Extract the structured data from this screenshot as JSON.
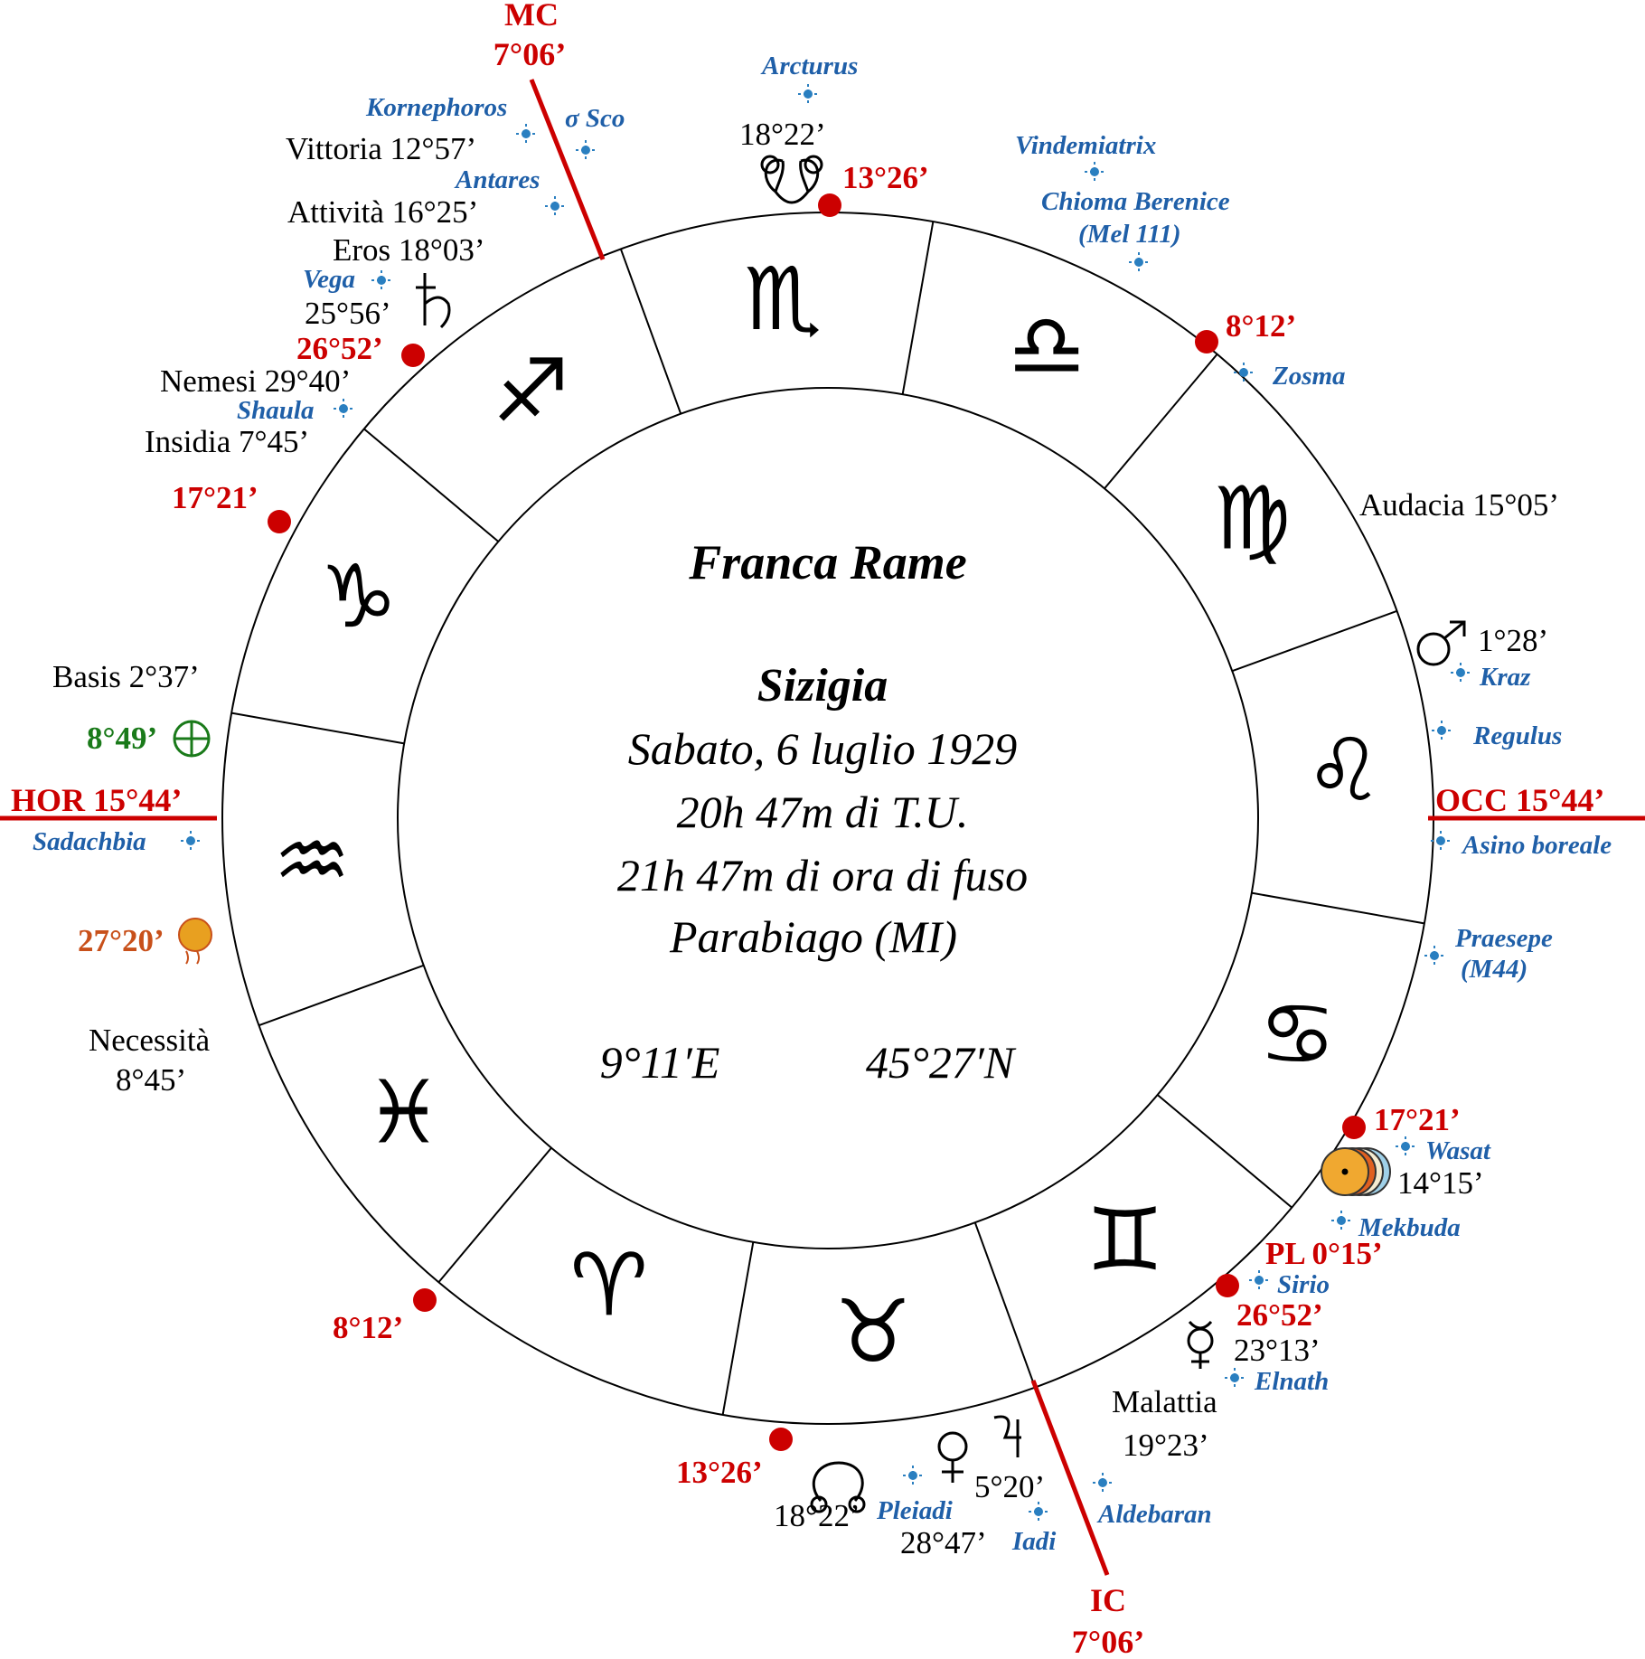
{
  "center": {
    "name": "Franca Rame",
    "event": "Sizigia",
    "date": "Sabato, 6 luglio 1929",
    "ut": "20h 47m di T.U.",
    "local": "21h 47m di ora di fuso",
    "place": "Parabiago (MI)",
    "lon": "9°11′E",
    "lat": "45°27′N"
  },
  "signs": [
    {
      "glyph": "♏",
      "name": "Scorpione"
    },
    {
      "glyph": "♎",
      "name": "Bilancia"
    },
    {
      "glyph": "♍",
      "name": "Vergine"
    },
    {
      "glyph": "♌",
      "name": "Leone"
    },
    {
      "glyph": "♋",
      "name": "Cancro"
    },
    {
      "glyph": "♊",
      "name": "Gemelli"
    },
    {
      "glyph": "♉",
      "name": "Toro"
    },
    {
      "glyph": "♈",
      "name": "Ariete"
    },
    {
      "glyph": "♓",
      "name": "Pesci"
    },
    {
      "glyph": "♒",
      "name": "Acquario"
    },
    {
      "glyph": "♑",
      "name": "Capricorno"
    },
    {
      "glyph": "♐",
      "name": "Sagittario"
    }
  ],
  "axes": {
    "mc_label": "MC",
    "mc_value": "7°06’",
    "ic_label": "IC",
    "ic_value": "7°06’",
    "asc": "HOR 15°44’",
    "desc": "OCC 15°44’"
  },
  "cusps": {
    "c1": "13°26’",
    "c2": "8°12’",
    "c3": "26°52’",
    "c4": "17°21’",
    "c5": "17°21’",
    "c6": "8°12’",
    "c7": "13°26’",
    "pl_label": "PL 0°15’",
    "c8": "26°52’"
  },
  "stars": {
    "arcturus": "Arcturus",
    "vindemiatrix": "Vindemiatrix",
    "chioma": "Chioma Berenice",
    "mel": "(Mel 111)",
    "zosma": "Zosma",
    "kornephoros": "Kornephoros",
    "sigma_sco": "σ Sco",
    "antares": "Antares",
    "vega": "Vega",
    "shaula": "Shaula",
    "kraz": "Kraz",
    "regulus": "Regulus",
    "asino": "Asino boreale",
    "praesepe": "Praesepe",
    "m44": "(M44)",
    "wasat": "Wasat",
    "mekbuda": "Mekbuda",
    "sirio": "Sirio",
    "elnath": "Elnath",
    "aldebaran": "Aldebaran",
    "pleiadi": "Pleiadi",
    "iadi": "Iadi",
    "sadachbia": "Sadachbia"
  },
  "points": {
    "vittoria": "Vittoria 12°57’",
    "attivita": "Attività 16°25’",
    "eros": "Eros 18°03’",
    "saturn": "25°56’",
    "nemesi": "Nemesi 29°40’",
    "insidia": "Insidia 7°45’",
    "node_top": "18°22’",
    "audacia": "Audacia 15°05’",
    "mars": "1°28’",
    "basis": "Basis 2°37’",
    "fortune": "8°49’",
    "lilith": "27°20’",
    "necessita1": "Necessità",
    "necessita2": "8°45’",
    "sunmoon": "14°15’",
    "mercury": "23°13’",
    "malattia1": "Malattia",
    "malattia2": "19°23’",
    "jupiter": "5°20’",
    "venus": "28°47’",
    "node_bottom": "18°22’"
  },
  "colors": {
    "red": "#cc0000",
    "blue": "#1f5fa8",
    "green": "#1a7a1a",
    "orange": "#c8501a",
    "star": "#2a7fc0",
    "black": "#000000"
  }
}
